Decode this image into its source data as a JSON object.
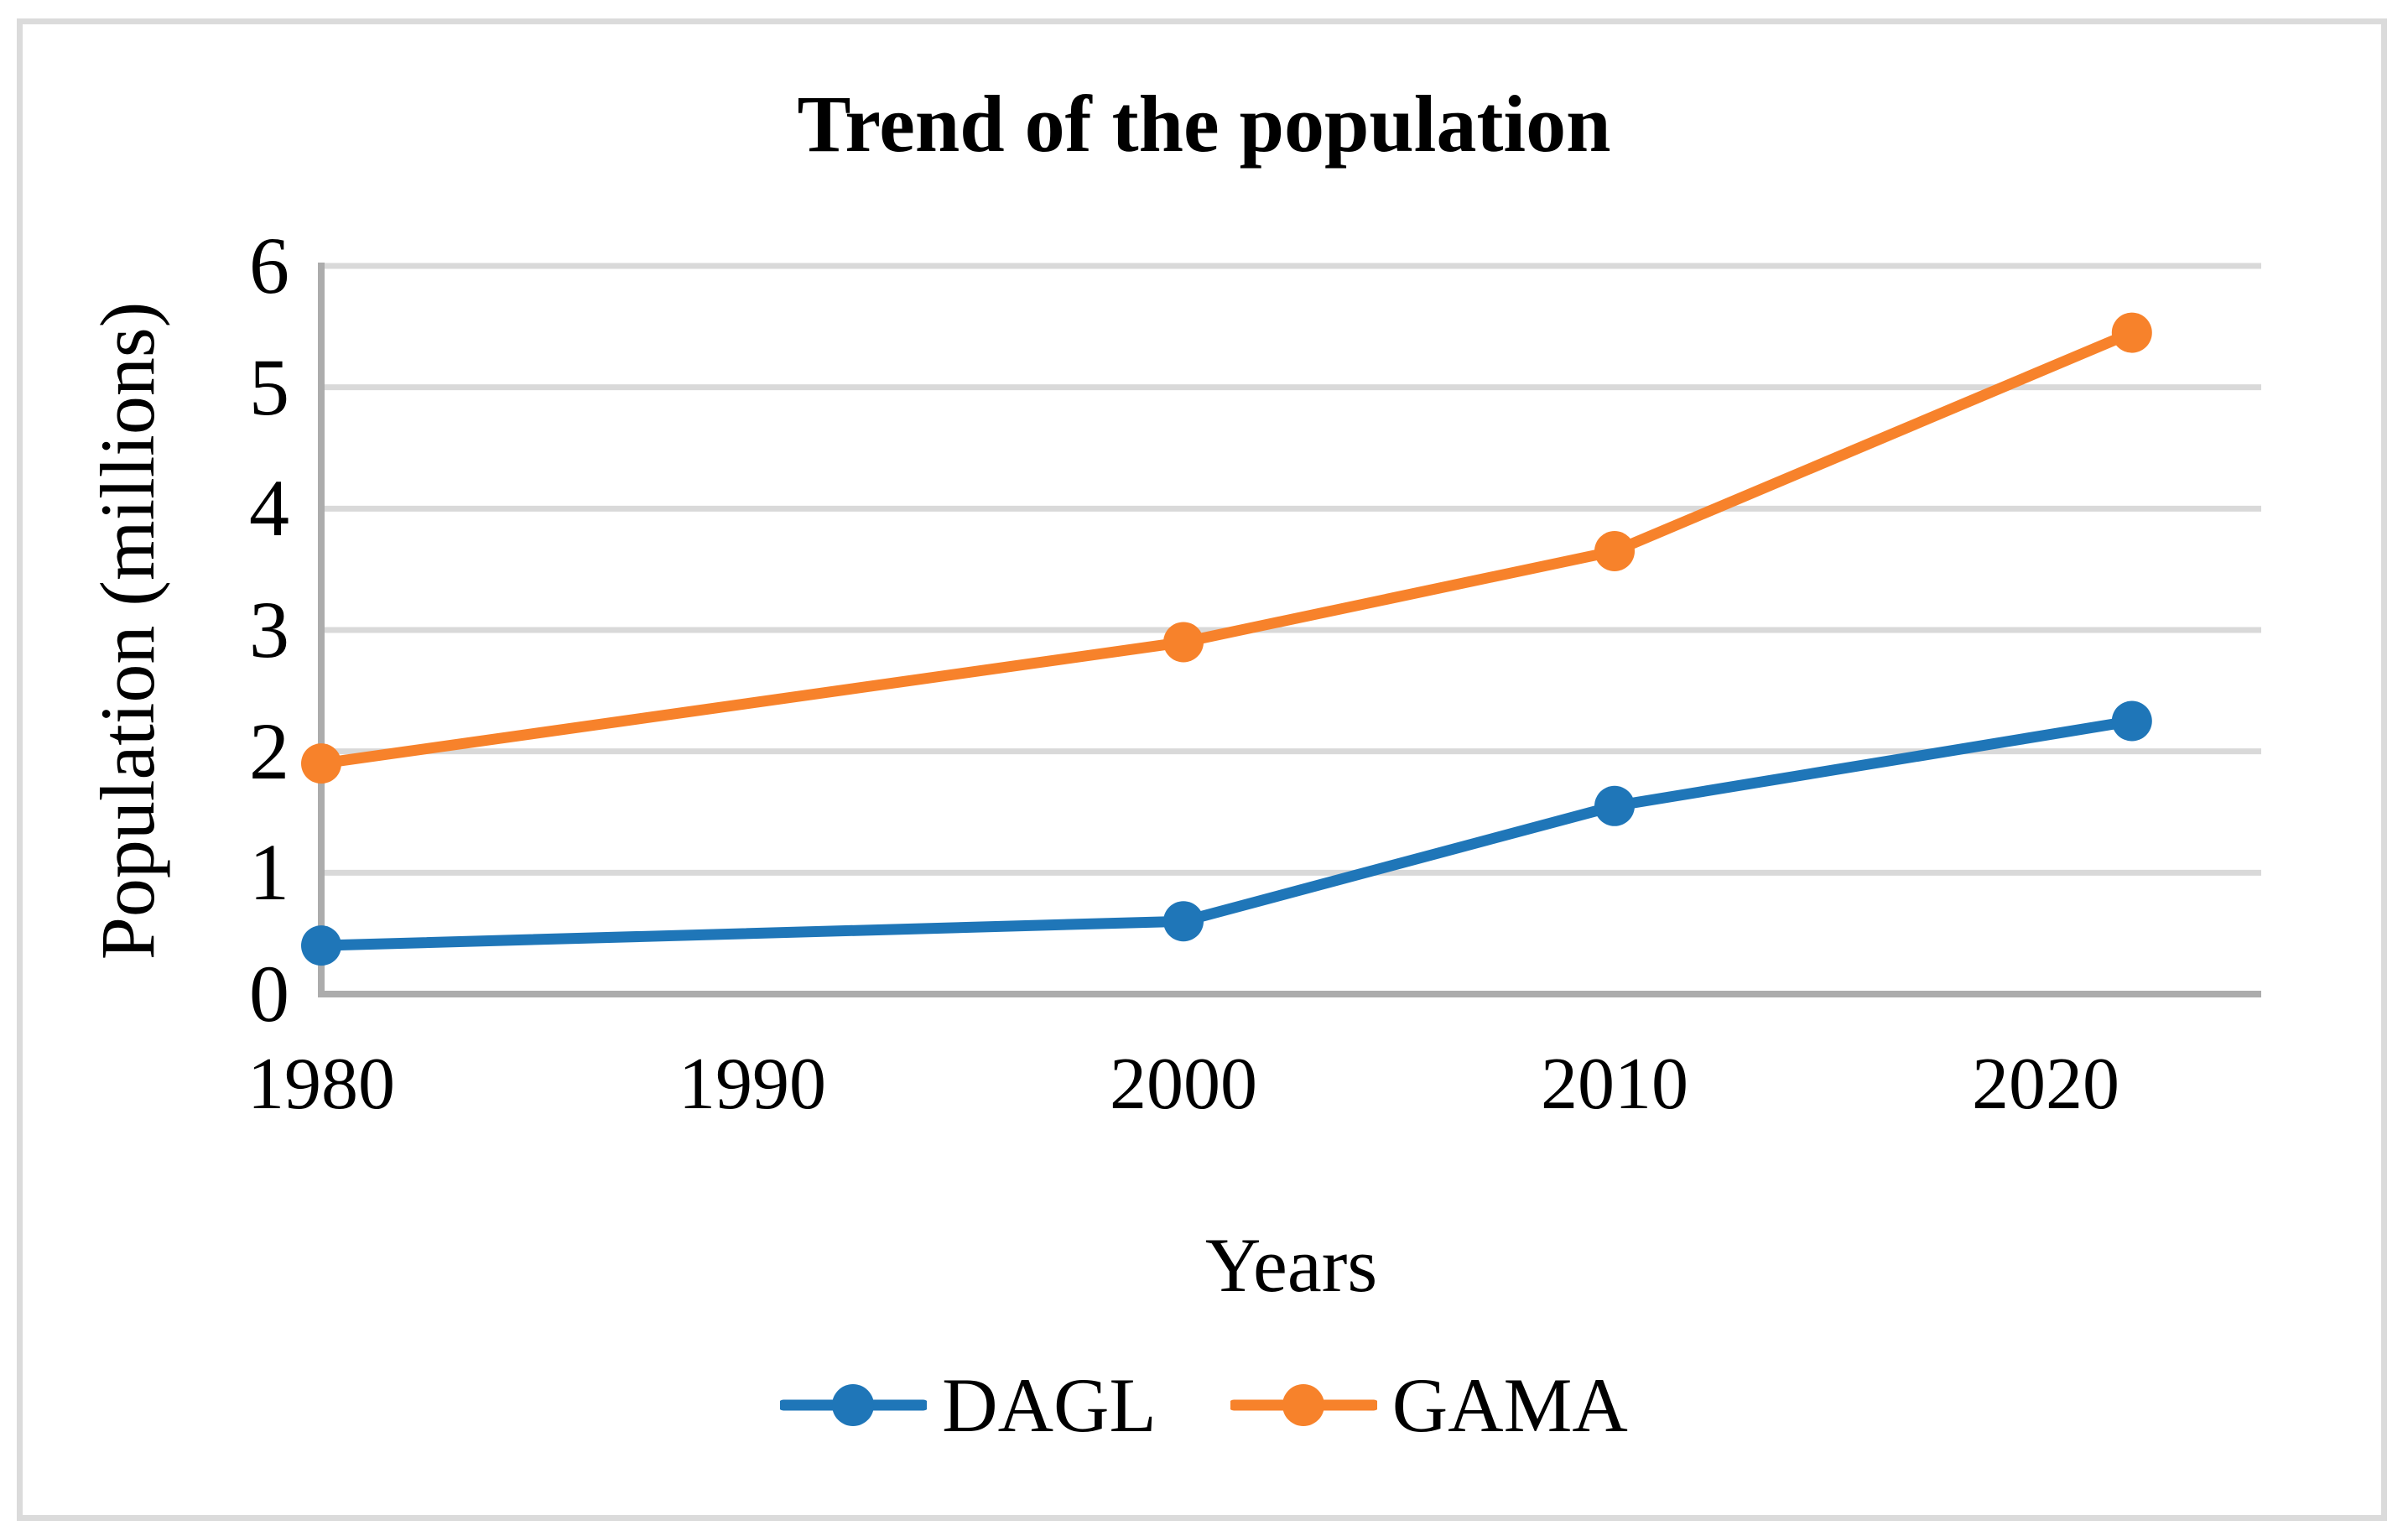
{
  "figure": {
    "background_color": "#FFFFFF",
    "border_color": "#DBDBDB"
  },
  "chart_data": {
    "type": "line",
    "title": "Trend of the population",
    "xlabel": "Years",
    "ylabel": "Population (millions)",
    "x": [
      1980,
      2000,
      2010,
      2022
    ],
    "series": [
      {
        "name": "DAGL",
        "color": "#1F76B8",
        "values": [
          0.4,
          0.6,
          1.55,
          2.25
        ]
      },
      {
        "name": "GAMA",
        "color": "#F7822B",
        "values": [
          1.9,
          2.9,
          3.65,
          5.45
        ]
      }
    ],
    "x_ticks": [
      "1980",
      "1990",
      "2000",
      "2010",
      "2020"
    ],
    "y_ticks": [
      "0",
      "1",
      "2",
      "3",
      "4",
      "5",
      "6"
    ],
    "xlim": [
      1980,
      2025
    ],
    "ylim": [
      0,
      6
    ],
    "grid": "horizontal",
    "gridline_color": "#D9D9D9",
    "axis_line_color": "#ACACAC",
    "legend_position": "bottom",
    "marker": "circle",
    "line_width": 13,
    "marker_radius": 24
  }
}
